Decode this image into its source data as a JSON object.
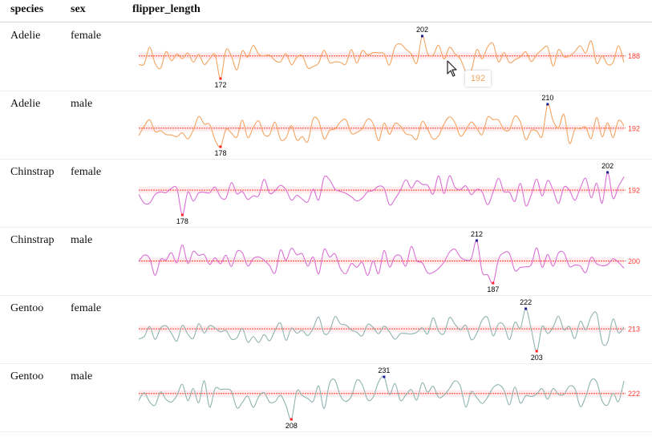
{
  "table": {
    "columns": [
      "species",
      "sex",
      "flipper_length"
    ]
  },
  "chart_data": [
    {
      "type": "line",
      "species": "Adelie",
      "sex": "female",
      "min": 172,
      "max": 202,
      "mean": 188,
      "min_pos": 0.17,
      "max_pos": 0.58,
      "color": "#f4a460",
      "seed": 11
    },
    {
      "type": "line",
      "species": "Adelie",
      "sex": "male",
      "min": 178,
      "max": 210,
      "mean": 192,
      "min_pos": 0.17,
      "max_pos": 0.84,
      "color": "#f4a460",
      "seed": 23
    },
    {
      "type": "line",
      "species": "Chinstrap",
      "sex": "female",
      "min": 178,
      "max": 202,
      "mean": 192,
      "min_pos": 0.09,
      "max_pos": 0.97,
      "color": "#da70d6",
      "seed": 37
    },
    {
      "type": "line",
      "species": "Chinstrap",
      "sex": "male",
      "min": 187,
      "max": 212,
      "mean": 200,
      "min_pos": 0.73,
      "max_pos": 0.7,
      "color": "#da70d6",
      "seed": 41
    },
    {
      "type": "line",
      "species": "Gentoo",
      "sex": "female",
      "min": 203,
      "max": 222,
      "mean": 213,
      "min_pos": 0.82,
      "max_pos": 0.8,
      "color": "#8fb4b0",
      "seed": 53
    },
    {
      "type": "line",
      "species": "Gentoo",
      "sex": "male",
      "min": 208,
      "max": 231,
      "mean": 222,
      "min_pos": 0.32,
      "max_pos": 0.51,
      "color": "#8fb4b0",
      "seed": 67
    }
  ],
  "tooltip": {
    "value": "192",
    "color": "#f4a460"
  },
  "mean_color": "#ff3b30",
  "min_color": "#ff2222",
  "max_color": "#1a1a8c"
}
